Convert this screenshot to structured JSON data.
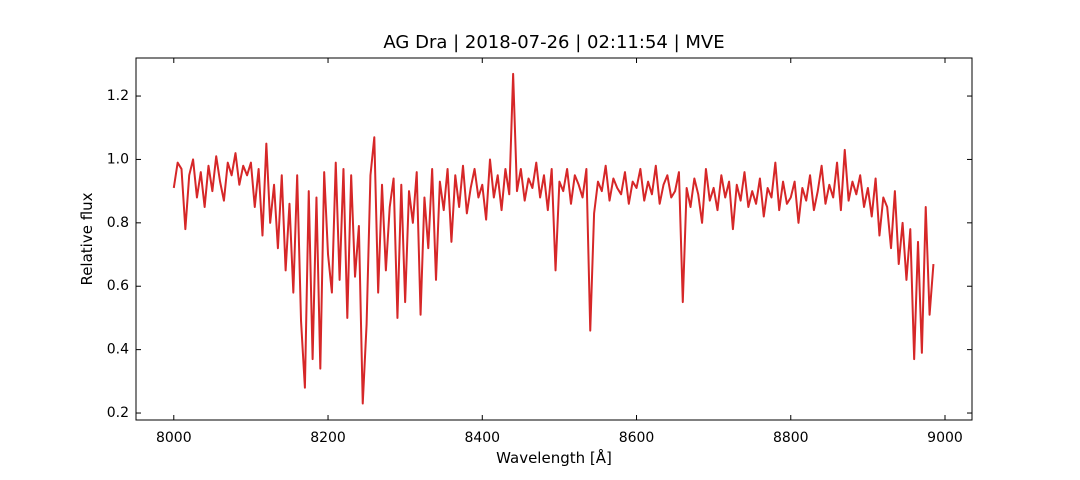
{
  "chart_data": {
    "type": "line",
    "title": "AG Dra | 2018-07-26 | 02:11:54 | MVE",
    "xlabel": "Wavelength [Å]",
    "ylabel": "Relative flux",
    "xlim": [
      7951,
      9035
    ],
    "ylim": [
      0.178,
      1.32
    ],
    "xticks": [
      8000,
      8200,
      8400,
      8600,
      8800,
      9000
    ],
    "yticks": [
      0.2,
      0.4,
      0.6,
      0.8,
      {
        "value": 1,
        "label": "1.0"
      },
      1.2
    ],
    "grid": false,
    "series": [
      {
        "color": "#d62728",
        "x": [
          8000,
          8005,
          8010,
          8015,
          8020,
          8025,
          8030,
          8035,
          8040,
          8045,
          8050,
          8055,
          8060,
          8065,
          8070,
          8075,
          8080,
          8085,
          8090,
          8095,
          8100,
          8105,
          8110,
          8115,
          8120,
          8125,
          8130,
          8135,
          8140,
          8145,
          8150,
          8155,
          8160,
          8165,
          8170,
          8175,
          8180,
          8185,
          8190,
          8195,
          8200,
          8205,
          8210,
          8215,
          8220,
          8225,
          8230,
          8235,
          8240,
          8245,
          8250,
          8255,
          8260,
          8265,
          8270,
          8275,
          8280,
          8285,
          8290,
          8295,
          8300,
          8305,
          8310,
          8315,
          8320,
          8325,
          8330,
          8335,
          8340,
          8345,
          8350,
          8355,
          8360,
          8365,
          8370,
          8375,
          8380,
          8385,
          8390,
          8395,
          8400,
          8405,
          8410,
          8415,
          8420,
          8425,
          8430,
          8435,
          8440,
          8445,
          8450,
          8455,
          8460,
          8465,
          8470,
          8475,
          8480,
          8485,
          8490,
          8495,
          8500,
          8505,
          8510,
          8515,
          8520,
          8525,
          8530,
          8535,
          8540,
          8545,
          8550,
          8555,
          8560,
          8565,
          8570,
          8575,
          8580,
          8585,
          8590,
          8595,
          8600,
          8605,
          8610,
          8615,
          8620,
          8625,
          8630,
          8635,
          8640,
          8645,
          8650,
          8655,
          8660,
          8665,
          8670,
          8675,
          8680,
          8685,
          8690,
          8695,
          8700,
          8705,
          8710,
          8715,
          8720,
          8725,
          8730,
          8735,
          8740,
          8745,
          8750,
          8755,
          8760,
          8765,
          8770,
          8775,
          8780,
          8785,
          8790,
          8795,
          8800,
          8805,
          8810,
          8815,
          8820,
          8825,
          8830,
          8835,
          8840,
          8845,
          8850,
          8855,
          8860,
          8865,
          8870,
          8875,
          8880,
          8885,
          8890,
          8895,
          8900,
          8905,
          8910,
          8915,
          8920,
          8925,
          8930,
          8935,
          8940,
          8945,
          8950,
          8955,
          8960,
          8965,
          8970,
          8975,
          8980,
          8985
        ],
        "values": [
          0.91,
          0.99,
          0.97,
          0.78,
          0.95,
          1.0,
          0.88,
          0.96,
          0.85,
          0.98,
          0.9,
          1.01,
          0.93,
          0.87,
          0.99,
          0.95,
          1.02,
          0.92,
          0.98,
          0.95,
          0.99,
          0.85,
          0.97,
          0.76,
          1.05,
          0.8,
          0.92,
          0.72,
          0.95,
          0.65,
          0.86,
          0.58,
          0.95,
          0.49,
          0.28,
          0.9,
          0.37,
          0.88,
          0.34,
          0.96,
          0.7,
          0.58,
          0.99,
          0.62,
          0.97,
          0.5,
          0.95,
          0.63,
          0.79,
          0.23,
          0.48,
          0.95,
          1.07,
          0.58,
          0.92,
          0.65,
          0.85,
          0.94,
          0.5,
          0.92,
          0.55,
          0.9,
          0.8,
          0.96,
          0.51,
          0.88,
          0.72,
          0.97,
          0.62,
          0.93,
          0.84,
          0.97,
          0.74,
          0.95,
          0.85,
          0.98,
          0.83,
          0.91,
          0.97,
          0.88,
          0.92,
          0.81,
          1.0,
          0.88,
          0.95,
          0.84,
          0.97,
          0.89,
          1.27,
          0.9,
          0.97,
          0.87,
          0.94,
          0.91,
          0.99,
          0.88,
          0.95,
          0.84,
          0.97,
          0.65,
          0.93,
          0.9,
          0.97,
          0.86,
          0.95,
          0.92,
          0.88,
          0.97,
          0.46,
          0.83,
          0.93,
          0.9,
          0.98,
          0.87,
          0.94,
          0.91,
          0.89,
          0.96,
          0.86,
          0.93,
          0.91,
          0.97,
          0.87,
          0.93,
          0.89,
          0.98,
          0.86,
          0.92,
          0.95,
          0.88,
          0.9,
          0.96,
          0.55,
          0.91,
          0.85,
          0.94,
          0.89,
          0.8,
          0.97,
          0.87,
          0.91,
          0.84,
          0.95,
          0.88,
          0.93,
          0.78,
          0.92,
          0.87,
          0.96,
          0.85,
          0.9,
          0.86,
          0.94,
          0.82,
          0.91,
          0.88,
          0.99,
          0.84,
          0.93,
          0.86,
          0.88,
          0.93,
          0.8,
          0.91,
          0.87,
          0.95,
          0.84,
          0.9,
          0.98,
          0.86,
          0.92,
          0.88,
          0.99,
          0.84,
          1.03,
          0.87,
          0.93,
          0.89,
          0.95,
          0.85,
          0.91,
          0.82,
          0.94,
          0.76,
          0.88,
          0.85,
          0.72,
          0.9,
          0.67,
          0.8,
          0.62,
          0.78,
          0.37,
          0.74,
          0.39,
          0.85,
          0.51,
          0.67
        ]
      }
    ]
  }
}
